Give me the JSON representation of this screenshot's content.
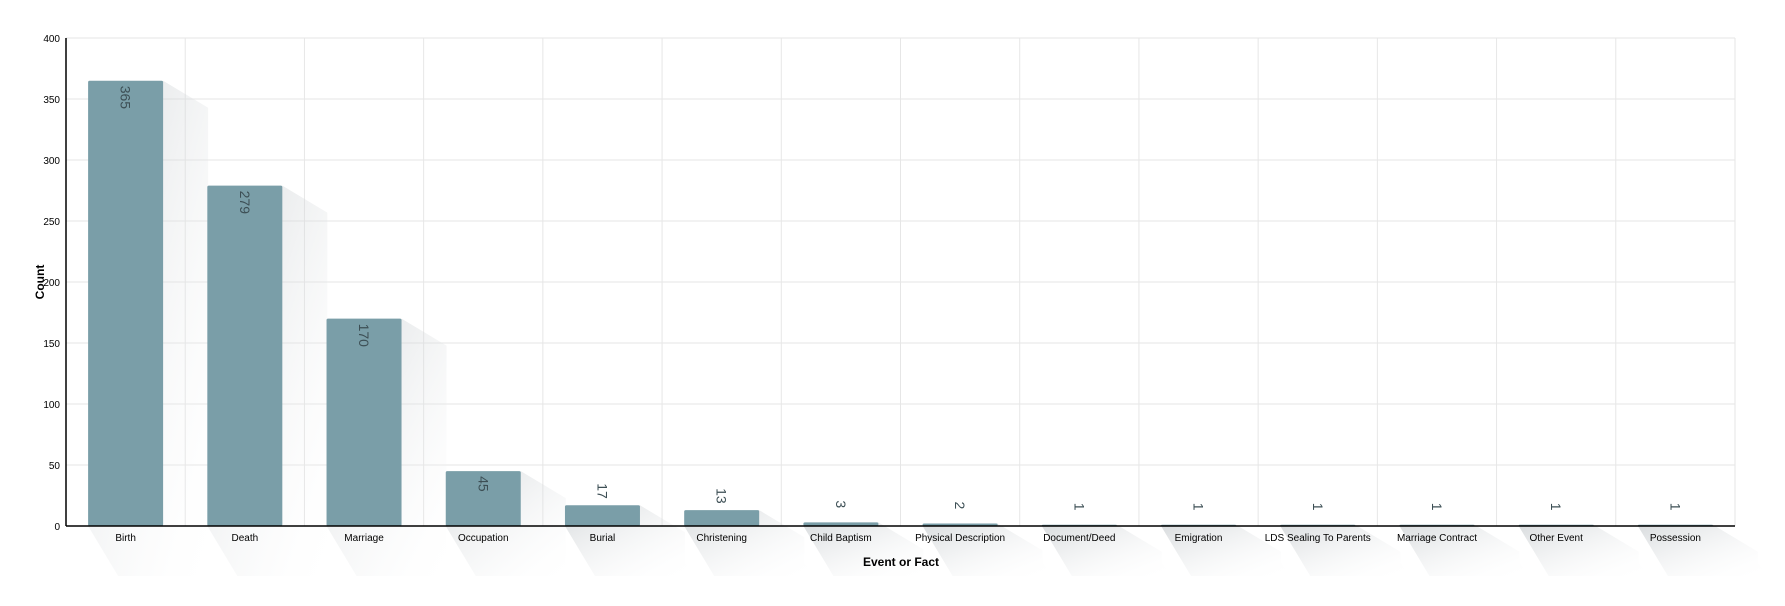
{
  "chart_data": {
    "type": "bar",
    "title": "",
    "xlabel": "Event or Fact",
    "ylabel": "Count",
    "ylim": [
      0,
      400
    ],
    "yticks": [
      0,
      50,
      100,
      150,
      200,
      250,
      300,
      350,
      400
    ],
    "grid": true,
    "categories": [
      "Birth",
      "Death",
      "Marriage",
      "Occupation",
      "Burial",
      "Christening",
      "Child Baptism",
      "Physical Description",
      "Document/Deed",
      "Emigration",
      "LDS Sealing To Parents",
      "Marriage Contract",
      "Other Event",
      "Possession"
    ],
    "values": [
      365,
      279,
      170,
      45,
      17,
      13,
      3,
      2,
      1,
      1,
      1,
      1,
      1,
      1
    ],
    "bar_color": "#7a9ea8",
    "label_color": "#3d4f55"
  }
}
